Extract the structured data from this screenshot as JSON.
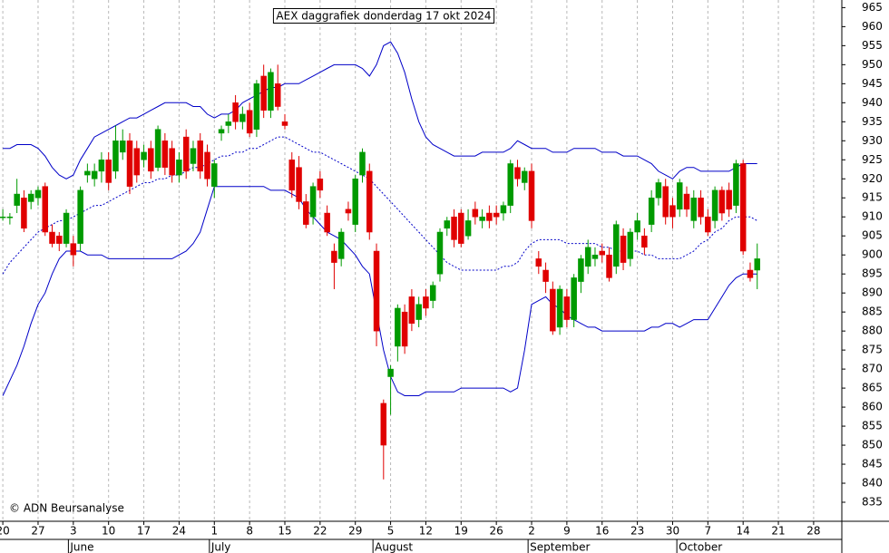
{
  "chart_data": {
    "type": "candlestick",
    "title": "AEX daggrafiek donderdag 17 okt 2024",
    "credit": "© ADN Beursanalyse",
    "up_color": "#009a00",
    "down_color": "#e00000",
    "band_color": "#0000c8",
    "grid": true,
    "xlim": [
      -0.4,
      119
    ],
    "xticks": [
      {
        "value": 0,
        "label": "20"
      },
      {
        "value": 5,
        "label": "27"
      },
      {
        "value": 10,
        "label": "3"
      },
      {
        "value": 15,
        "label": "10"
      },
      {
        "value": 20,
        "label": "17"
      },
      {
        "value": 25,
        "label": "24"
      },
      {
        "value": 30,
        "label": "1"
      },
      {
        "value": 35,
        "label": "8"
      },
      {
        "value": 40,
        "label": "15"
      },
      {
        "value": 45,
        "label": "22"
      },
      {
        "value": 50,
        "label": "29"
      },
      {
        "value": 55,
        "label": "5"
      },
      {
        "value": 60,
        "label": "12"
      },
      {
        "value": 65,
        "label": "19"
      },
      {
        "value": 70,
        "label": "26"
      },
      {
        "value": 75,
        "label": "2"
      },
      {
        "value": 80,
        "label": "9"
      },
      {
        "value": 85,
        "label": "16"
      },
      {
        "value": 90,
        "label": "23"
      },
      {
        "value": 95,
        "label": "30"
      },
      {
        "value": 100,
        "label": "7"
      },
      {
        "value": 105,
        "label": "14"
      },
      {
        "value": 110,
        "label": "21"
      },
      {
        "value": 115,
        "label": "28"
      }
    ],
    "month_ticks": [
      {
        "value": 9.3,
        "label": "June"
      },
      {
        "value": 29.3,
        "label": "July"
      },
      {
        "value": 52.5,
        "label": "August"
      },
      {
        "value": 74.5,
        "label": "September"
      },
      {
        "value": 95.6,
        "label": "October"
      }
    ],
    "ylim": [
      830,
      967
    ],
    "yticks": [
      835,
      840,
      845,
      850,
      855,
      860,
      865,
      870,
      875,
      880,
      885,
      890,
      895,
      900,
      905,
      910,
      915,
      920,
      925,
      930,
      935,
      940,
      945,
      950,
      955,
      960,
      965
    ],
    "open": [
      910,
      910,
      913,
      915,
      914,
      915,
      918,
      906,
      905,
      903,
      903,
      903,
      921,
      920,
      922,
      925,
      922,
      927,
      930,
      928,
      925,
      928,
      923,
      930,
      928,
      921,
      931,
      924,
      930,
      927,
      918,
      932,
      934,
      940,
      935,
      938,
      933,
      947,
      938,
      945,
      935,
      925,
      923,
      914,
      910,
      920,
      911,
      901,
      899,
      912,
      908,
      921,
      922,
      901,
      861,
      868,
      876,
      885,
      889,
      883,
      889,
      888,
      895,
      907,
      910,
      911,
      905,
      912,
      909,
      911,
      911,
      911,
      913,
      923,
      919,
      922,
      899,
      896,
      891,
      881,
      889,
      883,
      893,
      897,
      899,
      901,
      900,
      897,
      905,
      899,
      906,
      905,
      908,
      915,
      918,
      913,
      912,
      916,
      909,
      915,
      910,
      909,
      917,
      917,
      913,
      924,
      896,
      896
    ],
    "high": [
      912,
      911,
      920,
      917,
      917,
      918,
      919,
      908,
      906,
      912,
      905,
      918,
      924,
      924,
      927,
      927,
      934,
      933,
      932,
      930,
      929,
      930,
      934,
      932,
      930,
      927,
      933,
      930,
      932,
      929,
      925,
      934,
      937,
      942,
      939,
      940,
      946,
      950,
      949,
      950,
      937,
      927,
      926,
      916,
      919,
      922,
      913,
      903,
      907,
      914,
      921,
      928,
      924,
      903,
      862,
      871,
      887,
      887,
      891,
      889,
      891,
      893,
      907,
      910,
      912,
      912,
      912,
      914,
      912,
      913,
      913,
      914,
      925,
      925,
      923,
      924,
      901,
      898,
      893,
      892,
      891,
      895,
      900,
      904,
      902,
      903,
      902,
      909,
      907,
      907,
      911,
      907,
      917,
      920,
      920,
      915,
      920,
      918,
      917,
      917,
      912,
      918,
      918,
      919,
      925,
      925,
      898,
      903
    ],
    "low": [
      909,
      908,
      911,
      906,
      912,
      913,
      905,
      902,
      901,
      902,
      897,
      901,
      919,
      918,
      919,
      917,
      920,
      925,
      916,
      919,
      923,
      920,
      922,
      921,
      919,
      919,
      920,
      922,
      920,
      918,
      915,
      930,
      932,
      933,
      933,
      931,
      931,
      936,
      936,
      938,
      933,
      915,
      912,
      907,
      908,
      915,
      905,
      891,
      897,
      909,
      906,
      919,
      904,
      876,
      841,
      858,
      872,
      874,
      880,
      881,
      884,
      886,
      893,
      905,
      902,
      902,
      904,
      908,
      907,
      907,
      908,
      909,
      911,
      918,
      917,
      907,
      895,
      890,
      879,
      879,
      881,
      881,
      890,
      895,
      897,
      898,
      893,
      895,
      896,
      897,
      904,
      900,
      906,
      913,
      908,
      907,
      910,
      910,
      907,
      908,
      905,
      907,
      909,
      910,
      911,
      900,
      893,
      891
    ],
    "close": [
      910,
      910,
      916,
      907,
      916,
      917,
      906,
      903,
      903,
      911,
      900,
      917,
      922,
      922,
      925,
      919,
      930,
      930,
      918,
      921,
      927,
      922,
      933,
      923,
      921,
      925,
      922,
      928,
      922,
      920,
      924,
      933,
      935,
      935,
      937,
      932,
      945,
      938,
      948,
      939,
      934,
      917,
      914,
      908,
      918,
      917,
      906,
      898,
      906,
      911,
      920,
      927,
      906,
      880,
      850,
      870,
      886,
      876,
      882,
      887,
      886,
      892,
      906,
      909,
      904,
      903,
      909,
      910,
      910,
      909,
      910,
      913,
      924,
      920,
      922,
      909,
      897,
      893,
      880,
      891,
      883,
      894,
      899,
      902,
      900,
      900,
      894,
      908,
      898,
      906,
      909,
      902,
      915,
      919,
      910,
      910,
      919,
      912,
      915,
      910,
      906,
      917,
      911,
      912,
      924,
      901,
      894,
      899
    ],
    "bands": {
      "upper": [
        928,
        928,
        929,
        929,
        929,
        928,
        926,
        923,
        921,
        920,
        921,
        925,
        928,
        931,
        932,
        933,
        934,
        935,
        936,
        936,
        937,
        938,
        939,
        940,
        940,
        940,
        940,
        939,
        939,
        937,
        936,
        937,
        937,
        938,
        940,
        941,
        942,
        943,
        944,
        944,
        945,
        945,
        945,
        946,
        947,
        948,
        949,
        950,
        950,
        950,
        950,
        949,
        947,
        950,
        955,
        956,
        953,
        948,
        941,
        935,
        931,
        929,
        928,
        927,
        926,
        926,
        926,
        926,
        927,
        927,
        927,
        927,
        928,
        930,
        929,
        928,
        928,
        928,
        927,
        927,
        927,
        928,
        928,
        928,
        928,
        927,
        927,
        927,
        926,
        926,
        926,
        925,
        924,
        922,
        921,
        920,
        922,
        923,
        923,
        922,
        922,
        922,
        922,
        922,
        923,
        924,
        924,
        924
      ],
      "middle": [
        895,
        898,
        900,
        902,
        904,
        906,
        907,
        908,
        909,
        909,
        910,
        911,
        912,
        913,
        913,
        914,
        915,
        916,
        917,
        918,
        919,
        919,
        920,
        920,
        921,
        921,
        922,
        923,
        923,
        924,
        925,
        926,
        926,
        927,
        927,
        928,
        928,
        929,
        930,
        931,
        931,
        930,
        929,
        928,
        927,
        927,
        926,
        925,
        924,
        923,
        922,
        921,
        920,
        918,
        916,
        914,
        912,
        910,
        908,
        906,
        904,
        902,
        900,
        898,
        897,
        896,
        896,
        896,
        896,
        896,
        896,
        897,
        897,
        898,
        901,
        903,
        904,
        904,
        904,
        904,
        903,
        903,
        903,
        903,
        903,
        902,
        902,
        901,
        901,
        901,
        901,
        900,
        900,
        899,
        899,
        899,
        899,
        900,
        901,
        903,
        904,
        906,
        907,
        909,
        910,
        910,
        910,
        909
      ],
      "lower": [
        863,
        867,
        871,
        876,
        882,
        887,
        890,
        895,
        899,
        901,
        901,
        901,
        900,
        900,
        900,
        899,
        899,
        899,
        899,
        899,
        899,
        899,
        899,
        899,
        899,
        900,
        901,
        903,
        906,
        912,
        918,
        918,
        918,
        918,
        918,
        918,
        918,
        918,
        917,
        917,
        917,
        916,
        915,
        912,
        910,
        908,
        906,
        905,
        904,
        902,
        900,
        897,
        895,
        885,
        875,
        868,
        864,
        863,
        863,
        863,
        864,
        864,
        864,
        864,
        864,
        865,
        865,
        865,
        865,
        865,
        865,
        865,
        864,
        865,
        875,
        887,
        888,
        889,
        887,
        886,
        884,
        883,
        882,
        881,
        881,
        880,
        880,
        880,
        880,
        880,
        880,
        880,
        881,
        881,
        882,
        882,
        881,
        882,
        883,
        883,
        883,
        886,
        889,
        892,
        894,
        895,
        895,
        895
      ]
    }
  }
}
